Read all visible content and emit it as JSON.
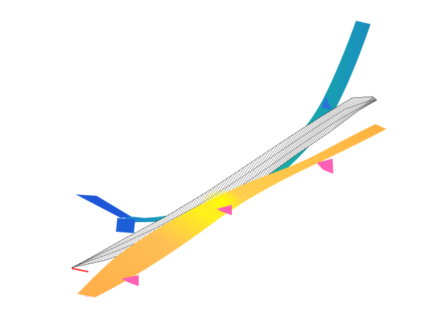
{
  "viewport": {
    "background": "#ffffff"
  },
  "layers": [
    {
      "name": "deformed-shape-upper",
      "style": "colored-surface",
      "colors": [
        "#1e4fd6",
        "#19b3a6",
        "#2aa8b6",
        "#f5f00a"
      ],
      "supports": 2
    },
    {
      "name": "undeformed-mesh",
      "style": "wireframe",
      "colors": [
        "#000000",
        "#ff2020"
      ]
    },
    {
      "name": "deformed-shape-lower",
      "style": "colored-surface",
      "colors": [
        "#ffb14a",
        "#ffd34f",
        "#f0f00a"
      ],
      "supports": 3,
      "support_color": "#ff5fb4"
    }
  ]
}
